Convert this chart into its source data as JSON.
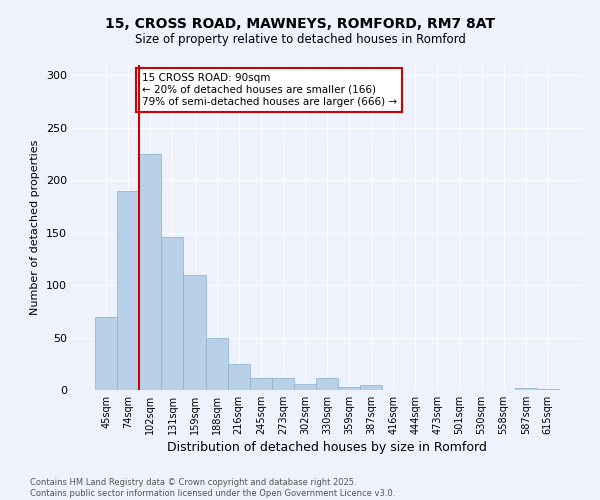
{
  "title_line1": "15, CROSS ROAD, MAWNEYS, ROMFORD, RM7 8AT",
  "title_line2": "Size of property relative to detached houses in Romford",
  "xlabel": "Distribution of detached houses by size in Romford",
  "ylabel": "Number of detached properties",
  "categories": [
    "45sqm",
    "74sqm",
    "102sqm",
    "131sqm",
    "159sqm",
    "188sqm",
    "216sqm",
    "245sqm",
    "273sqm",
    "302sqm",
    "330sqm",
    "359sqm",
    "387sqm",
    "416sqm",
    "444sqm",
    "473sqm",
    "501sqm",
    "530sqm",
    "558sqm",
    "587sqm",
    "615sqm"
  ],
  "values": [
    70,
    190,
    225,
    146,
    110,
    50,
    25,
    11,
    11,
    6,
    11,
    3,
    5,
    0,
    0,
    0,
    0,
    0,
    0,
    2,
    1
  ],
  "bar_color": "#b8d0e8",
  "bar_edgecolor": "#8ab0cc",
  "background_color": "#eef2fc",
  "grid_color": "#ffffff",
  "vline_color": "#cc0000",
  "vline_x_index": 1.5,
  "annotation_text": "15 CROSS ROAD: 90sqm\n← 20% of detached houses are smaller (166)\n79% of semi-detached houses are larger (666) →",
  "annotation_box_color": "#ffffff",
  "annotation_box_edge": "#cc0000",
  "ylim": [
    0,
    310
  ],
  "yticks": [
    0,
    50,
    100,
    150,
    200,
    250,
    300
  ],
  "footer": "Contains HM Land Registry data © Crown copyright and database right 2025.\nContains public sector information licensed under the Open Government Licence v3.0."
}
